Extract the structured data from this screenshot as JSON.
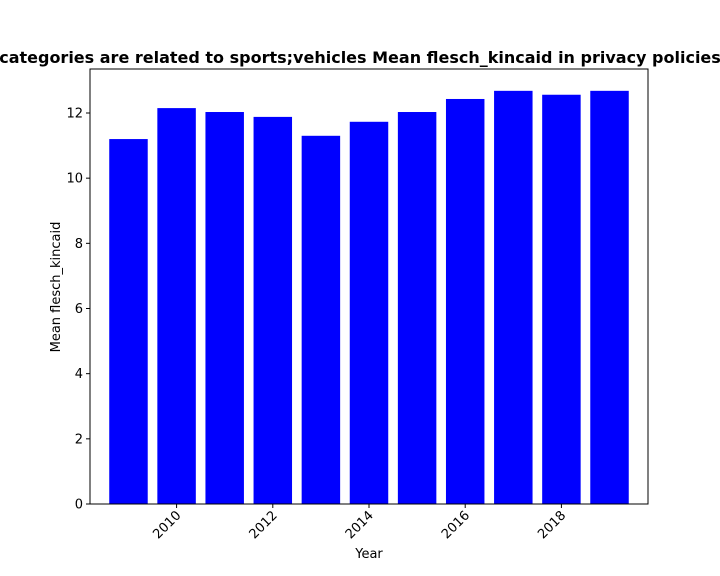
{
  "chart_data": {
    "type": "bar",
    "title": "categories are related to sports;vehicles Mean flesch_kincaid in privacy policies",
    "xlabel": "Year",
    "ylabel": "Mean flesch_kincaid",
    "x": [
      2009,
      2010,
      2011,
      2012,
      2013,
      2014,
      2015,
      2016,
      2017,
      2018,
      2019
    ],
    "values": [
      11.2,
      12.15,
      12.03,
      11.88,
      11.3,
      11.73,
      12.03,
      12.43,
      12.68,
      12.56,
      12.68
    ],
    "xlim": [
      2008.2,
      2019.8
    ],
    "ylim": [
      0,
      13.35
    ],
    "xticks": [
      2010,
      2012,
      2014,
      2016,
      2018
    ],
    "xtick_labels": [
      "2010",
      "2012",
      "2014",
      "2016",
      "2018"
    ],
    "yticks": [
      0,
      2,
      4,
      6,
      8,
      10,
      12
    ],
    "ytick_labels": [
      "0",
      "2",
      "4",
      "6",
      "8",
      "10",
      "12"
    ],
    "bar_color": "#0000ff",
    "grid": false,
    "legend": "none"
  }
}
